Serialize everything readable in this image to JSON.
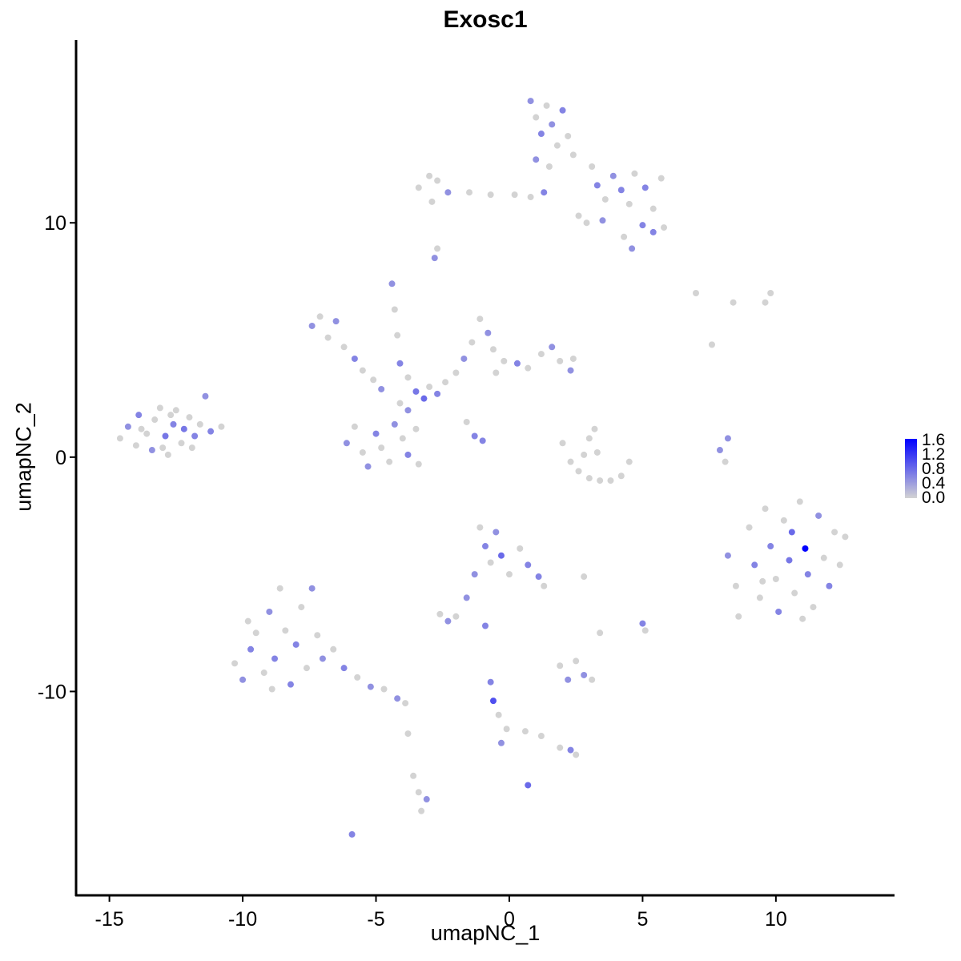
{
  "chart_data": {
    "type": "scatter",
    "title": "Exosc1",
    "xlabel": "umapNC_1",
    "ylabel": "umapNC_2",
    "xlim": [
      -16.25,
      14.45
    ],
    "ylim": [
      -18.7,
      17.8
    ],
    "xticks": [
      -15,
      -10,
      -5,
      0,
      5,
      10
    ],
    "yticks": [
      -10,
      0,
      10
    ],
    "xtick_labels": [
      "-15",
      "-10",
      "-5",
      "0",
      "5",
      "10"
    ],
    "ytick_labels": [
      "-10",
      "0",
      "10"
    ],
    "grid": false,
    "colors": {
      "low": "#d3d3d3",
      "high": "#0000ff"
    },
    "legend": {
      "position": "right",
      "type": "colorbar",
      "range": [
        0,
        1.6
      ],
      "labels": [
        "1.6",
        "1.2",
        "0.8",
        "0.4",
        "0.0"
      ]
    },
    "points": [
      [
        -14.6,
        0.8,
        0
      ],
      [
        -14.3,
        1.3,
        0.5
      ],
      [
        -14.0,
        0.5,
        0
      ],
      [
        -13.9,
        1.8,
        0.6
      ],
      [
        -13.6,
        1.0,
        0
      ],
      [
        -13.4,
        0.3,
        0.5
      ],
      [
        -13.3,
        1.6,
        0
      ],
      [
        -13.1,
        2.1,
        0
      ],
      [
        -12.9,
        0.9,
        0.7
      ],
      [
        -12.8,
        0.1,
        0
      ],
      [
        -12.6,
        1.4,
        0.6
      ],
      [
        -12.5,
        2.0,
        0
      ],
      [
        -12.3,
        0.6,
        0
      ],
      [
        -12.2,
        1.2,
        0.7
      ],
      [
        -12.0,
        1.7,
        0
      ],
      [
        -11.8,
        0.9,
        0.6
      ],
      [
        -11.6,
        1.4,
        0
      ],
      [
        -11.4,
        2.6,
        0.5
      ],
      [
        -11.2,
        1.1,
        0.6
      ],
      [
        -10.8,
        1.3,
        0
      ],
      [
        -13.8,
        1.2,
        0
      ],
      [
        -12.7,
        1.8,
        0
      ],
      [
        -13.0,
        0.4,
        0
      ],
      [
        -11.9,
        0.4,
        0
      ],
      [
        -7.4,
        5.6,
        0.5
      ],
      [
        -7.1,
        6.0,
        0
      ],
      [
        -6.8,
        5.1,
        0
      ],
      [
        -6.5,
        5.8,
        0.5
      ],
      [
        -6.2,
        4.7,
        0
      ],
      [
        -5.8,
        4.2,
        0.6
      ],
      [
        -5.5,
        3.7,
        0
      ],
      [
        -5.1,
        3.3,
        0
      ],
      [
        -4.8,
        2.9,
        0.5
      ],
      [
        -4.4,
        7.4,
        0.5
      ],
      [
        -4.3,
        6.3,
        0
      ],
      [
        -4.2,
        5.2,
        0
      ],
      [
        -4.1,
        4.0,
        0.6
      ],
      [
        -3.8,
        3.4,
        0
      ],
      [
        -3.5,
        2.8,
        0.7
      ],
      [
        -3.2,
        2.5,
        0.8
      ],
      [
        -3.0,
        3.0,
        0
      ],
      [
        -2.7,
        2.7,
        0.6
      ],
      [
        -2.4,
        3.2,
        0
      ],
      [
        -2.0,
        3.6,
        0
      ],
      [
        -1.7,
        4.2,
        0.5
      ],
      [
        -1.4,
        4.9,
        0
      ],
      [
        -1.1,
        5.9,
        0
      ],
      [
        -0.8,
        5.3,
        0.5
      ],
      [
        -0.6,
        4.6,
        0
      ],
      [
        -0.2,
        4.1,
        0
      ],
      [
        0.3,
        4.0,
        0.6
      ],
      [
        0.7,
        3.8,
        0
      ],
      [
        1.2,
        4.4,
        0
      ],
      [
        1.6,
        4.7,
        0.5
      ],
      [
        1.9,
        4.1,
        0
      ],
      [
        2.3,
        3.7,
        0.5
      ],
      [
        2.4,
        4.2,
        0
      ],
      [
        -0.5,
        3.6,
        0
      ],
      [
        -1.6,
        1.5,
        0
      ],
      [
        -1.3,
        0.9,
        0.6
      ],
      [
        -1.0,
        0.7,
        0.6
      ],
      [
        -6.1,
        0.6,
        0.5
      ],
      [
        -5.8,
        1.3,
        0
      ],
      [
        -5.5,
        0.2,
        0
      ],
      [
        -5.3,
        -0.4,
        0.5
      ],
      [
        -5.0,
        1.0,
        0.6
      ],
      [
        -4.8,
        0.4,
        0
      ],
      [
        -4.5,
        -0.2,
        0
      ],
      [
        -4.3,
        1.4,
        0.5
      ],
      [
        -4.0,
        0.8,
        0
      ],
      [
        -3.8,
        0.1,
        0.6
      ],
      [
        -3.5,
        1.2,
        0
      ],
      [
        -3.4,
        -0.3,
        0
      ],
      [
        -3.8,
        2.0,
        0.5
      ],
      [
        -4.1,
        2.3,
        0
      ],
      [
        0.8,
        15.2,
        0.5
      ],
      [
        1.0,
        14.5,
        0
      ],
      [
        1.2,
        13.8,
        0.6
      ],
      [
        1.4,
        15.0,
        0
      ],
      [
        1.6,
        14.2,
        0.5
      ],
      [
        1.8,
        13.3,
        0
      ],
      [
        2.0,
        14.8,
        0.6
      ],
      [
        2.2,
        13.7,
        0
      ],
      [
        2.4,
        12.9,
        0
      ],
      [
        1.0,
        12.7,
        0.5
      ],
      [
        1.5,
        12.4,
        0
      ],
      [
        1.3,
        11.3,
        0.6
      ],
      [
        0.8,
        11.1,
        0
      ],
      [
        0.2,
        11.2,
        0
      ],
      [
        -0.7,
        11.2,
        0
      ],
      [
        -1.5,
        11.3,
        0
      ],
      [
        -2.3,
        11.3,
        0.5
      ],
      [
        -2.7,
        11.8,
        0
      ],
      [
        -3.0,
        12.0,
        0
      ],
      [
        -3.4,
        11.5,
        0
      ],
      [
        -2.9,
        10.9,
        0
      ],
      [
        -2.7,
        8.9,
        0
      ],
      [
        -2.8,
        8.5,
        0.5
      ],
      [
        3.1,
        12.4,
        0
      ],
      [
        3.3,
        11.6,
        0.6
      ],
      [
        3.6,
        11.0,
        0
      ],
      [
        3.9,
        12.0,
        0.5
      ],
      [
        4.2,
        11.4,
        0.6
      ],
      [
        4.5,
        10.8,
        0
      ],
      [
        4.7,
        12.1,
        0
      ],
      [
        5.1,
        11.5,
        0.6
      ],
      [
        5.4,
        10.6,
        0
      ],
      [
        5.7,
        11.9,
        0
      ],
      [
        5.0,
        9.9,
        0.6
      ],
      [
        5.4,
        9.6,
        0.6
      ],
      [
        5.8,
        9.8,
        0
      ],
      [
        4.3,
        9.4,
        0
      ],
      [
        4.6,
        8.9,
        0.5
      ],
      [
        3.5,
        10.1,
        0.5
      ],
      [
        2.6,
        10.3,
        0
      ],
      [
        2.9,
        10.0,
        0
      ],
      [
        2.0,
        0.6,
        0
      ],
      [
        2.3,
        -0.2,
        0
      ],
      [
        2.6,
        -0.6,
        0
      ],
      [
        3.0,
        -0.9,
        0
      ],
      [
        3.4,
        -1.0,
        0
      ],
      [
        3.8,
        -1.0,
        0
      ],
      [
        4.2,
        -0.8,
        0
      ],
      [
        4.5,
        -0.2,
        0
      ],
      [
        3.0,
        0.8,
        0
      ],
      [
        3.2,
        1.2,
        0
      ],
      [
        3.3,
        0.2,
        0
      ],
      [
        2.8,
        0.1,
        0
      ],
      [
        7.0,
        7.0,
        0
      ],
      [
        8.4,
        6.6,
        0
      ],
      [
        9.6,
        6.6,
        0
      ],
      [
        9.8,
        7.0,
        0
      ],
      [
        7.6,
        4.8,
        0
      ],
      [
        7.9,
        0.3,
        0.5
      ],
      [
        8.2,
        0.8,
        0.5
      ],
      [
        8.1,
        -0.2,
        0
      ],
      [
        8.2,
        -4.2,
        0.5
      ],
      [
        8.5,
        -5.5,
        0
      ],
      [
        8.6,
        -6.8,
        0
      ],
      [
        9.0,
        -3.0,
        0
      ],
      [
        9.2,
        -4.6,
        0.6
      ],
      [
        9.4,
        -6.0,
        0
      ],
      [
        9.6,
        -2.2,
        0
      ],
      [
        9.8,
        -3.8,
        0.6
      ],
      [
        10.0,
        -5.2,
        0
      ],
      [
        10.1,
        -6.6,
        0.6
      ],
      [
        10.3,
        -2.7,
        0
      ],
      [
        10.5,
        -4.4,
        0.7
      ],
      [
        10.7,
        -5.8,
        0
      ],
      [
        10.9,
        -1.9,
        0
      ],
      [
        11.1,
        -3.9,
        1.6
      ],
      [
        11.2,
        -5.0,
        0.6
      ],
      [
        11.4,
        -6.4,
        0
      ],
      [
        11.6,
        -2.5,
        0.5
      ],
      [
        11.8,
        -4.3,
        0
      ],
      [
        12.0,
        -5.5,
        0.6
      ],
      [
        12.2,
        -3.2,
        0
      ],
      [
        12.4,
        -4.6,
        0
      ],
      [
        12.6,
        -3.4,
        0
      ],
      [
        10.6,
        -3.2,
        0.8
      ],
      [
        9.5,
        -5.3,
        0
      ],
      [
        11.0,
        -6.9,
        0
      ],
      [
        -10.3,
        -8.8,
        0
      ],
      [
        -10.0,
        -9.5,
        0.5
      ],
      [
        -9.7,
        -8.2,
        0.6
      ],
      [
        -9.5,
        -7.5,
        0
      ],
      [
        -9.2,
        -9.2,
        0
      ],
      [
        -9.0,
        -6.6,
        0.5
      ],
      [
        -8.8,
        -8.6,
        0.6
      ],
      [
        -8.6,
        -5.6,
        0
      ],
      [
        -8.4,
        -7.4,
        0
      ],
      [
        -8.2,
        -9.7,
        0.6
      ],
      [
        -8.0,
        -8.0,
        0.6
      ],
      [
        -7.8,
        -6.4,
        0
      ],
      [
        -7.6,
        -9.0,
        0
      ],
      [
        -7.4,
        -5.6,
        0.5
      ],
      [
        -7.2,
        -7.6,
        0
      ],
      [
        -7.0,
        -8.6,
        0.5
      ],
      [
        -6.6,
        -8.2,
        0
      ],
      [
        -6.2,
        -9.0,
        0.6
      ],
      [
        -5.7,
        -9.4,
        0
      ],
      [
        -5.2,
        -9.8,
        0.5
      ],
      [
        -4.7,
        -9.9,
        0
      ],
      [
        -4.2,
        -10.3,
        0.5
      ],
      [
        -3.9,
        -10.5,
        0
      ],
      [
        -8.9,
        -9.9,
        0
      ],
      [
        -9.8,
        -7.0,
        0
      ],
      [
        -1.1,
        -3.0,
        0
      ],
      [
        -0.9,
        -3.8,
        0.6
      ],
      [
        -0.7,
        -4.5,
        0
      ],
      [
        -0.5,
        -3.2,
        0.5
      ],
      [
        -0.3,
        -4.2,
        0.8
      ],
      [
        0.0,
        -5.0,
        0
      ],
      [
        0.4,
        -3.9,
        0
      ],
      [
        0.7,
        -4.6,
        0.6
      ],
      [
        1.1,
        -5.1,
        0.6
      ],
      [
        1.3,
        -5.5,
        0
      ],
      [
        -1.3,
        -5.0,
        0.5
      ],
      [
        -1.6,
        -6.0,
        0.5
      ],
      [
        2.8,
        -5.1,
        0
      ],
      [
        -2.6,
        -6.7,
        0
      ],
      [
        -2.3,
        -7.0,
        0.5
      ],
      [
        -2.0,
        -6.8,
        0
      ],
      [
        -0.9,
        -7.2,
        0.6
      ],
      [
        3.4,
        -7.5,
        0
      ],
      [
        5.0,
        -7.1,
        0.6
      ],
      [
        5.1,
        -7.4,
        0
      ],
      [
        1.9,
        -8.9,
        0
      ],
      [
        2.2,
        -9.5,
        0.5
      ],
      [
        2.5,
        -8.7,
        0
      ],
      [
        2.8,
        -9.3,
        0.5
      ],
      [
        3.1,
        -9.5,
        0
      ],
      [
        -0.7,
        -9.6,
        0.6
      ],
      [
        -0.6,
        -10.4,
        1.0
      ],
      [
        -0.4,
        -11.0,
        0
      ],
      [
        -0.1,
        -11.6,
        0
      ],
      [
        -0.3,
        -12.2,
        0.5
      ],
      [
        0.6,
        -11.7,
        0
      ],
      [
        1.2,
        -11.9,
        0
      ],
      [
        1.9,
        -12.4,
        0
      ],
      [
        2.3,
        -12.5,
        0.6
      ],
      [
        2.5,
        -12.7,
        0
      ],
      [
        -3.8,
        -11.8,
        0
      ],
      [
        -3.6,
        -13.6,
        0
      ],
      [
        -3.4,
        -14.3,
        0
      ],
      [
        -3.3,
        -15.1,
        0
      ],
      [
        -3.1,
        -14.6,
        0.5
      ],
      [
        -5.9,
        -16.1,
        0.6
      ],
      [
        0.7,
        -14.0,
        0.8
      ]
    ]
  }
}
